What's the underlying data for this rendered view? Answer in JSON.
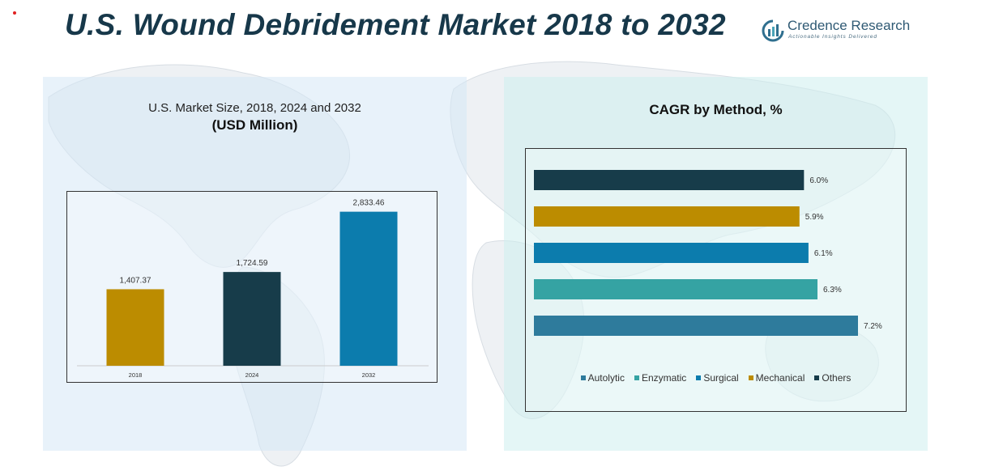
{
  "header": {
    "title": "U.S. Wound Debridement Market 2018 to 2032",
    "brand_name": "Credence Research",
    "brand_tagline": "Actionable Insights Delivered"
  },
  "colors": {
    "gold": "#bc8c00",
    "navy": "#173c4a",
    "blue": "#0c7cad",
    "teal": "#35a3a3",
    "steel": "#2e7b9c",
    "title": "#17384a"
  },
  "chart_data": [
    {
      "type": "bar",
      "title": "U.S. Market Size, 2018, 2024 and 2032",
      "subtitle": "(USD Million)",
      "categories": [
        "2018",
        "2024",
        "2032"
      ],
      "values": [
        1407.37,
        1724.59,
        2833.46
      ],
      "value_labels": [
        "1,407.37",
        "1,724.59",
        "2,833.46"
      ],
      "bar_colors": [
        "#bc8c00",
        "#173c4a",
        "#0c7cad"
      ],
      "ylim": [
        0,
        3200
      ],
      "grid": false,
      "legend": "none"
    },
    {
      "type": "bar",
      "orientation": "horizontal",
      "title": "CAGR by Method, %",
      "categories": [
        "Others",
        "Mechanical",
        "Surgical",
        "Enzymatic",
        "Autolytic"
      ],
      "values": [
        6.0,
        5.9,
        6.1,
        6.3,
        7.2
      ],
      "value_labels": [
        "6.0%",
        "5.9%",
        "6.1%",
        "6.3%",
        "7.2%"
      ],
      "bar_colors": [
        "#173c4a",
        "#bc8c00",
        "#0c7cad",
        "#35a3a3",
        "#2e7b9c"
      ],
      "xlim": [
        0,
        7.2
      ],
      "grid": false,
      "legend": "bottom",
      "legend_items": [
        {
          "label": "Autolytic",
          "color": "#2e7b9c"
        },
        {
          "label": "Enzymatic",
          "color": "#35a3a3"
        },
        {
          "label": "Surgical",
          "color": "#0c7cad"
        },
        {
          "label": "Mechanical",
          "color": "#bc8c00"
        },
        {
          "label": "Others",
          "color": "#173c4a"
        }
      ]
    }
  ]
}
